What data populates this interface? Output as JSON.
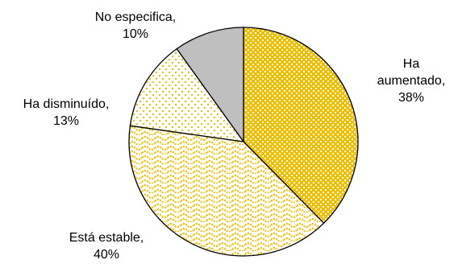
{
  "chart_data": {
    "type": "pie",
    "title": "",
    "slices": [
      {
        "label": "Ha aumentado",
        "value": 38,
        "value_text": "38%",
        "color": "#F2BE00",
        "pattern": "dots-on-fill"
      },
      {
        "label": "Está estable",
        "value": 40,
        "value_text": "40%",
        "color": "#F2BE00",
        "pattern": "wave"
      },
      {
        "label": "Ha disminuído",
        "value": 13,
        "value_text": "13%",
        "color": "#F2BE00",
        "pattern": "sparse-dots"
      },
      {
        "label": "No especifica",
        "value": 10,
        "value_text": "10%",
        "color": "#BFBFBF",
        "pattern": "solid"
      }
    ],
    "label_lines": [
      [
        "Ha",
        "aumentado,",
        "38%"
      ],
      [
        "Está estable,",
        "40%"
      ],
      [
        "Ha disminuído,",
        "13%"
      ],
      [
        "No especifica,",
        "10%"
      ]
    ],
    "legend": "none",
    "start": "top",
    "direction": "clockwise"
  }
}
